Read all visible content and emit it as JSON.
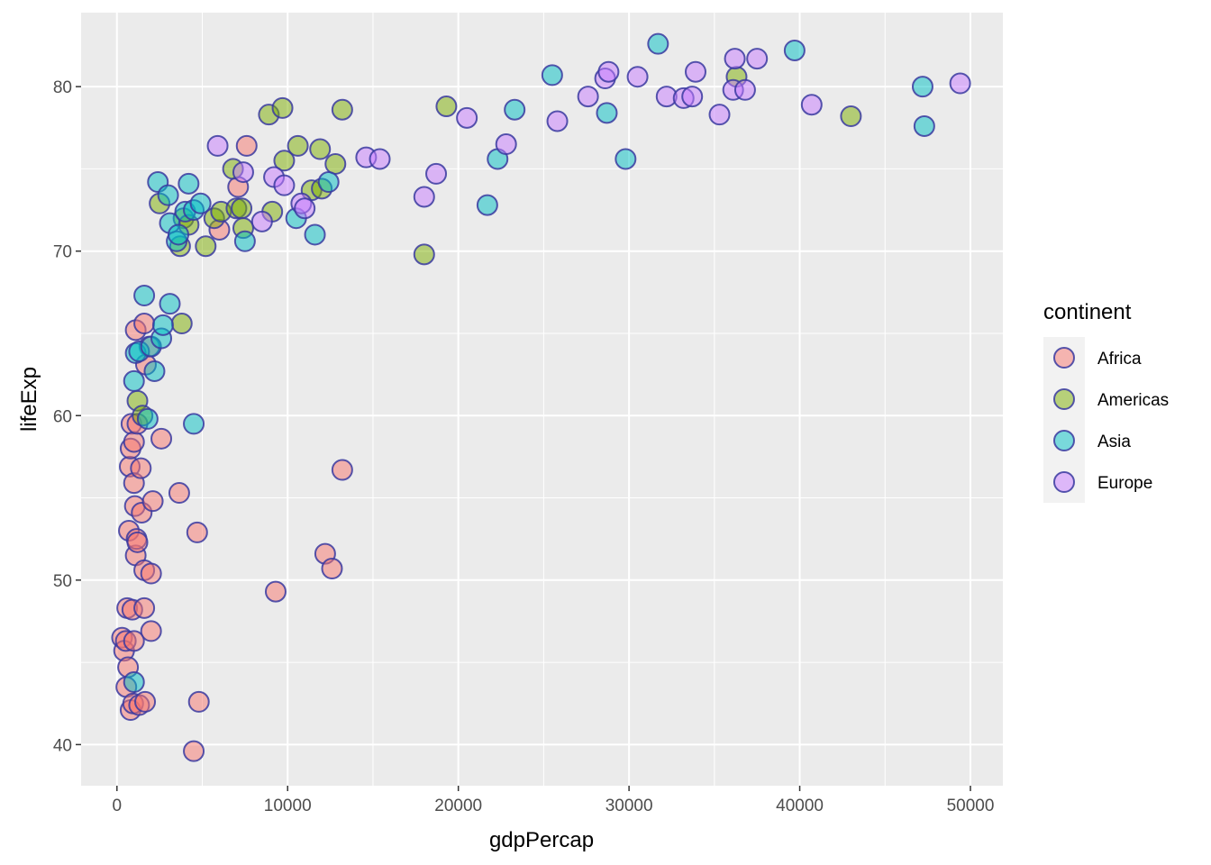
{
  "chart_data": {
    "type": "scatter",
    "xlabel": "gdpPercap",
    "ylabel": "lifeExp",
    "xlim": [
      -2100,
      51900
    ],
    "ylim": [
      37.5,
      84.5
    ],
    "x_ticks": [
      0,
      10000,
      20000,
      30000,
      40000,
      50000
    ],
    "x_tick_labels": [
      "0",
      "10000",
      "20000",
      "30000",
      "40000",
      "50000"
    ],
    "y_ticks": [
      40,
      50,
      60,
      70,
      80
    ],
    "y_tick_labels": [
      "40",
      "50",
      "60",
      "70",
      "80"
    ],
    "grid": true,
    "legend": {
      "title": "continent",
      "position": "right"
    },
    "point_style": {
      "fill_alpha": 0.5,
      "stroke": "#3a3aa0"
    },
    "series": [
      {
        "name": "Africa",
        "color": "#F8766D",
        "points": [
          [
            300,
            46.5
          ],
          [
            420,
            45.7
          ],
          [
            520,
            46.3
          ],
          [
            550,
            43.5
          ],
          [
            600,
            48.3
          ],
          [
            650,
            44.7
          ],
          [
            700,
            53.0
          ],
          [
            750,
            56.9
          ],
          [
            800,
            58.0
          ],
          [
            800,
            42.1
          ],
          [
            850,
            59.5
          ],
          [
            900,
            48.2
          ],
          [
            950,
            42.5
          ],
          [
            1000,
            46.3
          ],
          [
            1000,
            55.9
          ],
          [
            1000,
            58.4
          ],
          [
            1050,
            54.5
          ],
          [
            1100,
            51.5
          ],
          [
            1100,
            65.2
          ],
          [
            1150,
            52.5
          ],
          [
            1200,
            52.3
          ],
          [
            1200,
            59.5
          ],
          [
            1300,
            42.4
          ],
          [
            1400,
            56.8
          ],
          [
            1450,
            54.1
          ],
          [
            1600,
            50.6
          ],
          [
            1600,
            48.3
          ],
          [
            1600,
            65.6
          ],
          [
            1650,
            42.6
          ],
          [
            1700,
            63.1
          ],
          [
            1900,
            64.2
          ],
          [
            2000,
            46.9
          ],
          [
            2000,
            50.4
          ],
          [
            2100,
            54.8
          ],
          [
            2600,
            58.6
          ],
          [
            3650,
            55.3
          ],
          [
            4500,
            39.6
          ],
          [
            4700,
            52.9
          ],
          [
            4800,
            42.6
          ],
          [
            6000,
            71.3
          ],
          [
            7100,
            73.9
          ],
          [
            7600,
            76.4
          ],
          [
            9300,
            49.3
          ],
          [
            12200,
            51.6
          ],
          [
            12600,
            50.7
          ],
          [
            13200,
            56.7
          ]
        ]
      },
      {
        "name": "Americas",
        "color": "#7CAE00",
        "points": [
          [
            1200,
            60.9
          ],
          [
            1500,
            60.0
          ],
          [
            2500,
            72.9
          ],
          [
            3700,
            70.3
          ],
          [
            3800,
            65.6
          ],
          [
            3900,
            72.0
          ],
          [
            4200,
            71.6
          ],
          [
            5200,
            70.3
          ],
          [
            5700,
            72.0
          ],
          [
            6100,
            72.4
          ],
          [
            6800,
            75.0
          ],
          [
            7000,
            72.6
          ],
          [
            7300,
            72.6
          ],
          [
            7400,
            71.4
          ],
          [
            8900,
            78.3
          ],
          [
            9100,
            72.4
          ],
          [
            9700,
            78.7
          ],
          [
            9800,
            75.5
          ],
          [
            10600,
            76.4
          ],
          [
            11400,
            73.7
          ],
          [
            11900,
            76.2
          ],
          [
            12000,
            73.8
          ],
          [
            12800,
            75.3
          ],
          [
            13200,
            78.6
          ],
          [
            18000,
            69.8
          ],
          [
            19300,
            78.8
          ],
          [
            36300,
            80.6
          ],
          [
            43000,
            78.2
          ]
        ]
      },
      {
        "name": "Asia",
        "color": "#00BFC4",
        "points": [
          [
            1000,
            43.8
          ],
          [
            1000,
            62.1
          ],
          [
            1100,
            63.8
          ],
          [
            1300,
            63.9
          ],
          [
            1600,
            67.3
          ],
          [
            1800,
            59.8
          ],
          [
            2000,
            64.2
          ],
          [
            2200,
            62.7
          ],
          [
            2400,
            74.2
          ],
          [
            2600,
            64.7
          ],
          [
            2700,
            65.5
          ],
          [
            3000,
            73.4
          ],
          [
            3100,
            66.8
          ],
          [
            3100,
            71.7
          ],
          [
            3500,
            70.6
          ],
          [
            3600,
            71.0
          ],
          [
            4000,
            72.4
          ],
          [
            4200,
            74.1
          ],
          [
            4500,
            59.5
          ],
          [
            4500,
            72.5
          ],
          [
            4900,
            72.9
          ],
          [
            7500,
            70.6
          ],
          [
            10500,
            72.0
          ],
          [
            11600,
            71.0
          ],
          [
            12400,
            74.2
          ],
          [
            21700,
            72.8
          ],
          [
            22300,
            75.6
          ],
          [
            23300,
            78.6
          ],
          [
            25500,
            80.7
          ],
          [
            28700,
            78.4
          ],
          [
            29800,
            75.6
          ],
          [
            31700,
            82.6
          ],
          [
            47300,
            77.6
          ],
          [
            47200,
            80.0
          ],
          [
            39700,
            82.2
          ]
        ]
      },
      {
        "name": "Europe",
        "color": "#C77CFF",
        "points": [
          [
            5900,
            76.4
          ],
          [
            7400,
            74.8
          ],
          [
            8500,
            71.8
          ],
          [
            9200,
            74.5
          ],
          [
            9800,
            74.0
          ],
          [
            10800,
            72.9
          ],
          [
            11000,
            72.6
          ],
          [
            14600,
            75.7
          ],
          [
            15400,
            75.6
          ],
          [
            18000,
            73.3
          ],
          [
            18700,
            74.7
          ],
          [
            20500,
            78.1
          ],
          [
            22800,
            76.5
          ],
          [
            25800,
            77.9
          ],
          [
            27600,
            79.4
          ],
          [
            28600,
            80.5
          ],
          [
            28800,
            80.9
          ],
          [
            30500,
            80.6
          ],
          [
            32200,
            79.4
          ],
          [
            33200,
            79.3
          ],
          [
            33700,
            79.4
          ],
          [
            33900,
            80.9
          ],
          [
            35300,
            78.3
          ],
          [
            36100,
            79.8
          ],
          [
            36200,
            81.7
          ],
          [
            36800,
            79.8
          ],
          [
            37500,
            81.7
          ],
          [
            40700,
            78.9
          ],
          [
            49400,
            80.2
          ]
        ]
      }
    ]
  }
}
